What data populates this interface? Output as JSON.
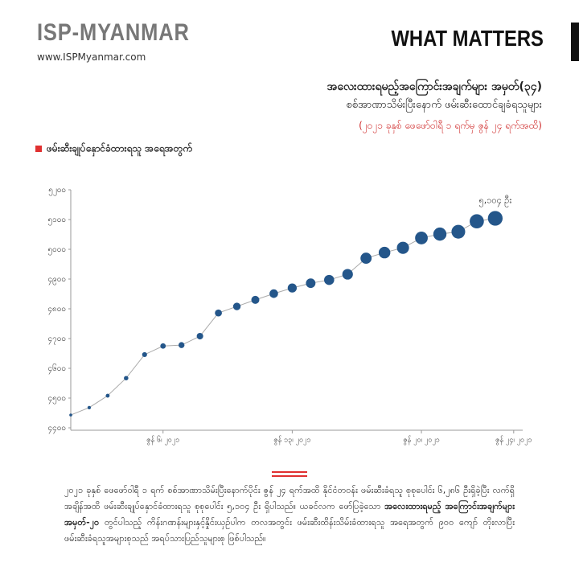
{
  "header": {
    "brand": "ISP-MYANMAR",
    "url": "www.ISPMyanmar.com",
    "section": "WHAT MATTERS"
  },
  "chart_data": {
    "type": "line",
    "title": "အလေးထားရမည့်အကြောင်းအချက်များ အမှတ်(၃၄)",
    "subtitle": "စစ်အာဏာသိမ်းပြီးနောက် ဖမ်းဆီးထောင်ချခံရသူများ",
    "period": "(၂၀၂၁ ခုနှစ် ဖေဖော်ဝါရီ ၁ ရက်မှ ဇွန် ၂၄ ရက်အထိ)",
    "categories": [
      null,
      null,
      null,
      null,
      null,
      "ဇွန် ၆၊ ၂၀၂၁",
      null,
      null,
      null,
      null,
      null,
      null,
      "ဇွန် ၁၃၊ ၂၀၂၁",
      null,
      null,
      null,
      null,
      null,
      null,
      "ဇွန် ၂၀၊ ၂၀၂၁",
      null,
      null,
      null,
      null,
      "ဇွန် ၂၄၊ ၂၀၂၁"
    ],
    "series": [
      {
        "name": "ဖမ်းဆီးချုပ်နှောင်ခံထားရသူ အရေအတွက်",
        "color": "#24568a",
        "line_color": "#aaaaaa",
        "legend_color": "#e03030",
        "values": [
          4443,
          4468,
          4508,
          4567,
          4646,
          4675,
          4678,
          4708,
          4786,
          4808,
          4830,
          4851,
          4870,
          4886,
          4897,
          4916,
          4970,
          4989,
          5005,
          5038,
          5051,
          5059,
          5094,
          5104,
          null
        ]
      }
    ],
    "annotation": "၅,၁၀၄ ဦး",
    "ylim": [
      4400,
      5200
    ],
    "yticks": [
      {
        "value": 4400,
        "label": "၄၄၀၀"
      },
      {
        "value": 4500,
        "label": "၄၅၀၀"
      },
      {
        "value": 4600,
        "label": "၄၆၀၀"
      },
      {
        "value": 4700,
        "label": "၄၇၀၀"
      },
      {
        "value": 4800,
        "label": "၄၈၀၀"
      },
      {
        "value": 4900,
        "label": "၄၉၀၀"
      },
      {
        "value": 5000,
        "label": "၅၀၀၀"
      },
      {
        "value": 5100,
        "label": "၅၁၀၀"
      },
      {
        "value": 5200,
        "label": "၅၂၀၀"
      }
    ],
    "grid": false
  },
  "footer": {
    "parts": [
      "၂၀၂၁ ခုနှစ် ဖေဖော်ဝါရီ ၁ ရက် စစ်အာဏာသိမ်းပြီးနောက်ပိုင်း ဇွန် ၂၄ ရက်အထိ နိုင်ငံတဝန်း ဖမ်းဆီးခံရသူ စုစုပေါင်း ၆,၂၈၆ ဦးရှိခဲ့ပြီး လက်ရှိအချိန်အထိ ဖမ်းဆီးချုပ်နှောင်ခံထားရသူ စုစုပေါင်း ၅,၁၀၄ ဦး ရှိပါသည်။ ယခင်လက ဖော်ပြခဲ့သော ",
      "အလေးထားရမည့် အကြောင်းအချက်များ အမှတ်-၂၀",
      " တွင်ပါသည့် ကိန်းဂဏန်းများနှင့်နှိုင်းယှဉ်ပါက တလအတွင်း ဖမ်းဆီးထိန်းသိမ်းခံထားရသူ အရေအတွက် ၉၀၀ ကျော် တိုးလာပြီး ဖမ်းဆီးခံရသူအများစုသည် အရပ်သားပြည်သူများစု ဖြစ်ပါသည်။"
    ]
  }
}
